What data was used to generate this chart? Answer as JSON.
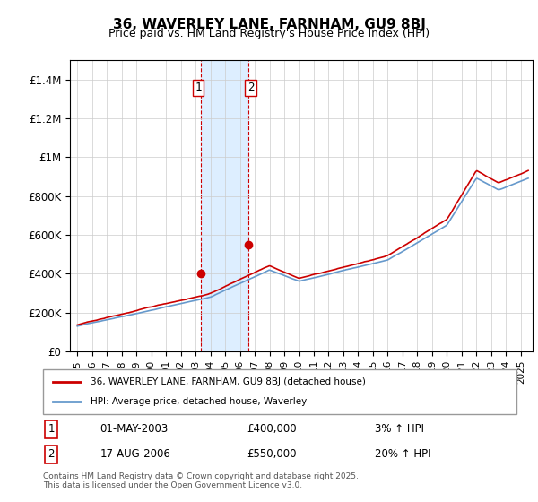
{
  "title": "36, WAVERLEY LANE, FARNHAM, GU9 8BJ",
  "subtitle": "Price paid vs. HM Land Registry's House Price Index (HPI)",
  "legend_line1": "36, WAVERLEY LANE, FARNHAM, GU9 8BJ (detached house)",
  "legend_line2": "HPI: Average price, detached house, Waverley",
  "transaction1_label": "1",
  "transaction1_date": "01-MAY-2003",
  "transaction1_price": "£400,000",
  "transaction1_hpi": "3% ↑ HPI",
  "transaction2_label": "2",
  "transaction2_date": "17-AUG-2006",
  "transaction2_price": "£550,000",
  "transaction2_hpi": "20% ↑ HPI",
  "footnote": "Contains HM Land Registry data © Crown copyright and database right 2025.\nThis data is licensed under the Open Government Licence v3.0.",
  "hpi_color": "#6699cc",
  "price_color": "#cc0000",
  "highlight_color": "#ddeeff",
  "highlight_border": "#cc0000",
  "ylim": [
    0,
    1500000
  ],
  "yticks": [
    0,
    200000,
    400000,
    600000,
    800000,
    1000000,
    1200000,
    1400000
  ],
  "ytick_labels": [
    "£0",
    "£200K",
    "£400K",
    "£600K",
    "£800K",
    "£1M",
    "£1.2M",
    "£1.4M"
  ],
  "xstart_year": 1995,
  "xend_year": 2026
}
